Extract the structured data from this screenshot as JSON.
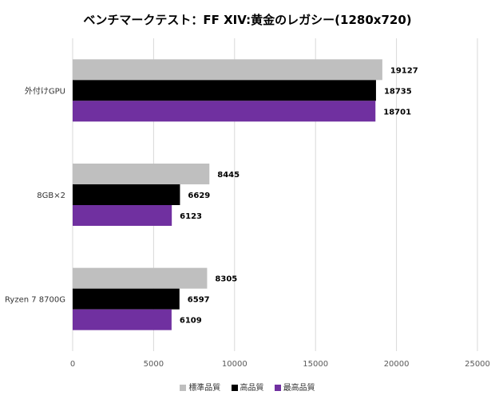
{
  "chart_data": {
    "type": "bar",
    "orientation": "horizontal",
    "title": "ベンチマークテスト：FF XIV:黄金のレガシー(1280x720)",
    "categories": [
      "外付けGPU",
      "8GB×2",
      "Ryzen 7 8700G"
    ],
    "series": [
      {
        "name": "標準品質",
        "color": "#bfbfbf",
        "values": [
          19127,
          8445,
          8305
        ]
      },
      {
        "name": "高品質",
        "color": "#000000",
        "values": [
          18735,
          6629,
          6597
        ]
      },
      {
        "name": "最高品質",
        "color": "#7030a0",
        "values": [
          18701,
          6123,
          6109
        ]
      }
    ],
    "xlim": [
      0,
      25000
    ],
    "xticks": [
      0,
      5000,
      10000,
      15000,
      20000,
      25000
    ],
    "grid": true,
    "legend_position": "bottom",
    "data_labels": true
  }
}
